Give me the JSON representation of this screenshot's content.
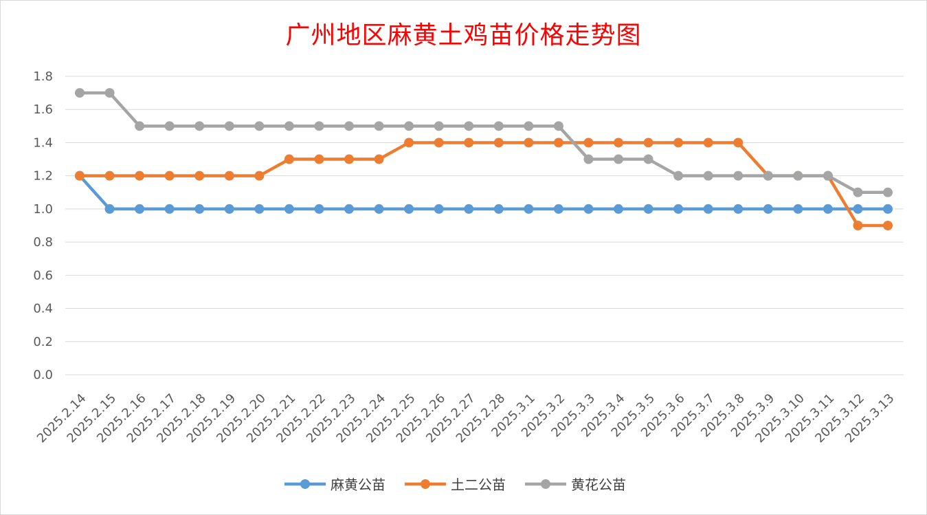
{
  "chart_data": {
    "type": "line",
    "title": "广州地区麻黄土鸡苗价格走势图",
    "xlabel": "",
    "ylabel": "",
    "ylim": [
      0.0,
      1.8
    ],
    "yticks": [
      "0.0",
      "0.2",
      "0.4",
      "0.6",
      "0.8",
      "1.0",
      "1.2",
      "1.4",
      "1.6",
      "1.8"
    ],
    "grid": true,
    "legend_position": "bottom",
    "categories": [
      "2025.2.14",
      "2025.2.15",
      "2025.2.16",
      "2025.2.17",
      "2025.2.18",
      "2025.2.19",
      "2025.2.20",
      "2025.2.21",
      "2025.2.22",
      "2025.2.23",
      "2025.2.24",
      "2025.2.25",
      "2025.2.26",
      "2025.2.27",
      "2025.2.28",
      "2025.3.1",
      "2025.3.2",
      "2025.3.3",
      "2025.3.4",
      "2025.3.5",
      "2025.3.6",
      "2025.3.7",
      "2025.3.8",
      "2025.3.9",
      "2025.3.10",
      "2025.3.11",
      "2025.3.12",
      "2025.3.13"
    ],
    "series": [
      {
        "name": "麻黄公苗",
        "color": "#5b9bd5",
        "values": [
          1.2,
          1.0,
          1.0,
          1.0,
          1.0,
          1.0,
          1.0,
          1.0,
          1.0,
          1.0,
          1.0,
          1.0,
          1.0,
          1.0,
          1.0,
          1.0,
          1.0,
          1.0,
          1.0,
          1.0,
          1.0,
          1.0,
          1.0,
          1.0,
          1.0,
          1.0,
          1.0,
          1.0
        ]
      },
      {
        "name": "土二公苗",
        "color": "#ed7d31",
        "values": [
          1.2,
          1.2,
          1.2,
          1.2,
          1.2,
          1.2,
          1.2,
          1.3,
          1.3,
          1.3,
          1.3,
          1.4,
          1.4,
          1.4,
          1.4,
          1.4,
          1.4,
          1.4,
          1.4,
          1.4,
          1.4,
          1.4,
          1.4,
          1.2,
          1.2,
          1.2,
          0.9,
          0.9
        ]
      },
      {
        "name": "黄花公苗",
        "color": "#a5a5a5",
        "values": [
          1.7,
          1.7,
          1.5,
          1.5,
          1.5,
          1.5,
          1.5,
          1.5,
          1.5,
          1.5,
          1.5,
          1.5,
          1.5,
          1.5,
          1.5,
          1.5,
          1.5,
          1.3,
          1.3,
          1.3,
          1.2,
          1.2,
          1.2,
          1.2,
          1.2,
          1.2,
          1.1,
          1.1
        ]
      }
    ]
  }
}
